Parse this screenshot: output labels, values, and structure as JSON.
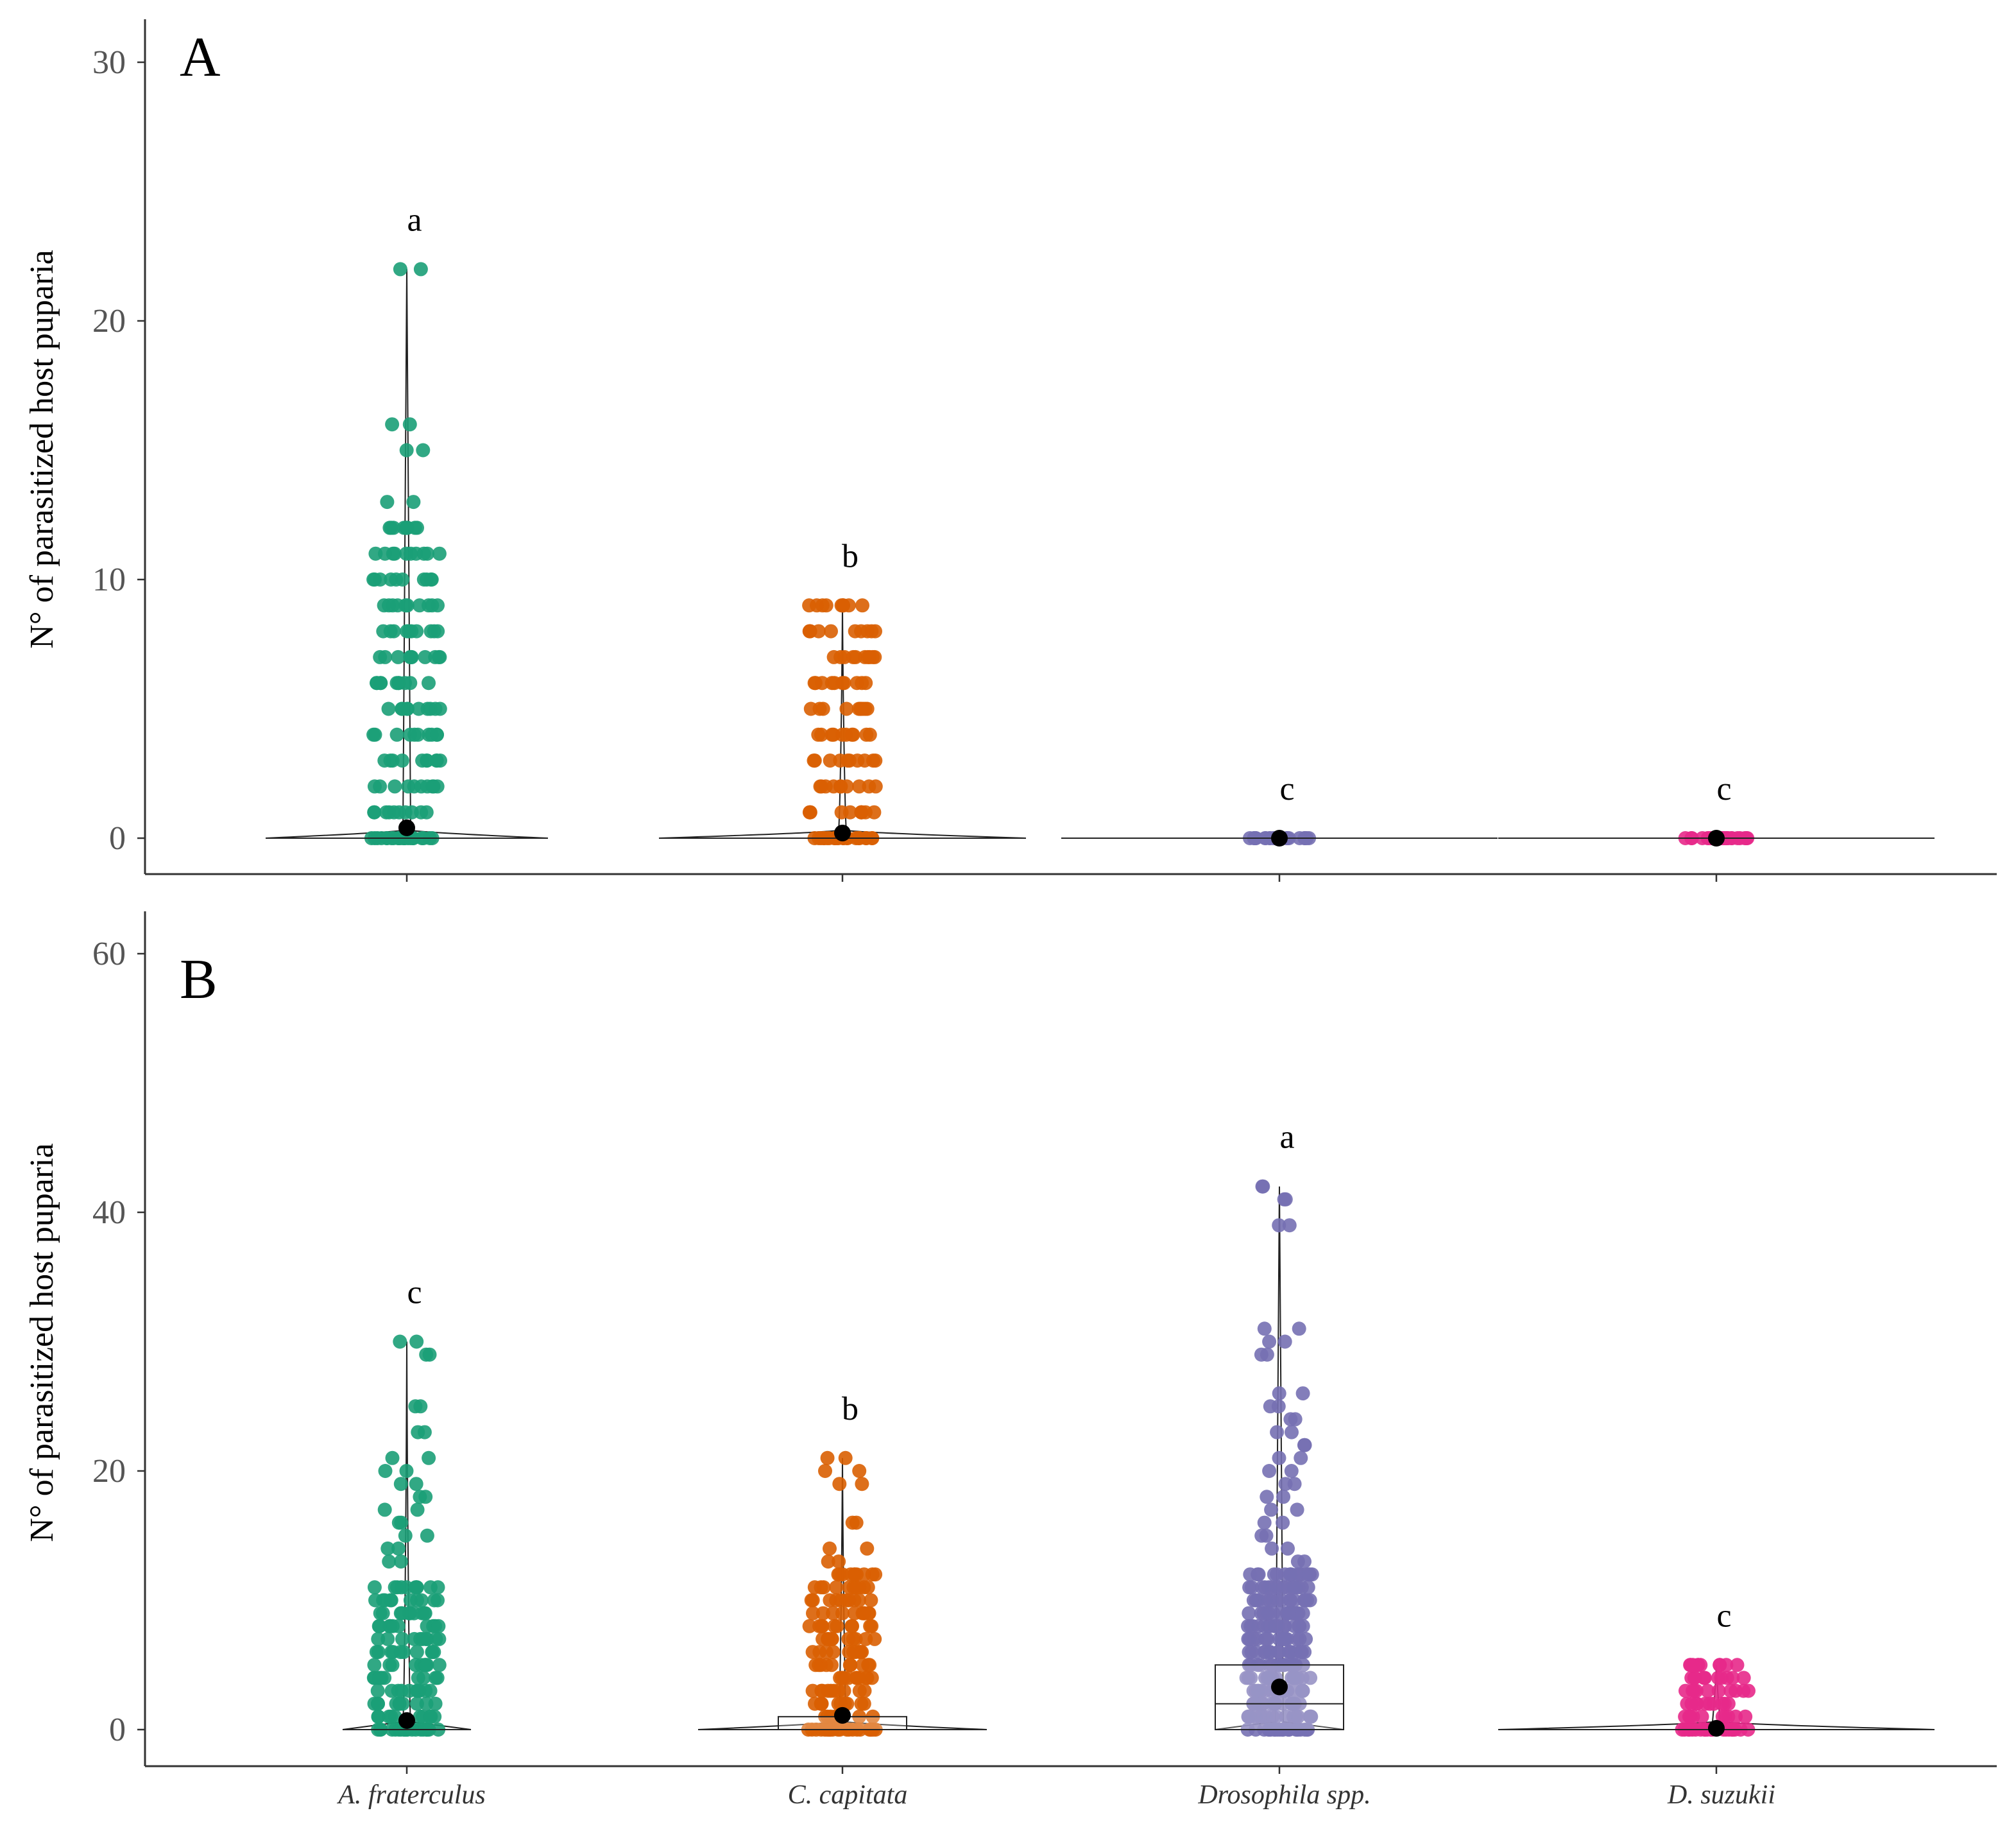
{
  "chart_data": [
    {
      "panel": "A",
      "type": "violin-jitter",
      "ylabel": "N° of parasitized host puparia",
      "ylim": [
        -1.4,
        32
      ],
      "yticks": [
        0,
        10,
        20,
        30
      ],
      "categories": [
        "A. fraterculus",
        "C. capitata",
        "Drosophila spp.",
        "D. suzukii"
      ],
      "colors": [
        "#1b9e77",
        "#d95f02",
        "#7570b3",
        "#e7298a"
      ],
      "letters": [
        "a",
        "b",
        "c",
        "c"
      ],
      "means": [
        0.4,
        0.2,
        0.0,
        0.0
      ],
      "max": [
        22,
        9,
        0,
        0
      ],
      "box": [
        {
          "q1": 0,
          "median": 0,
          "q3": 0
        },
        {
          "q1": 0,
          "median": 0,
          "q3": 0
        },
        {
          "q1": 0,
          "median": 0,
          "q3": 0
        },
        {
          "q1": 0,
          "median": 0,
          "q3": 0
        }
      ],
      "observed_values": [
        [
          0,
          1,
          2,
          3,
          4,
          5,
          6,
          7,
          8,
          9,
          10,
          11,
          12,
          13,
          15,
          16,
          22
        ],
        [
          0,
          1,
          2,
          3,
          4,
          5,
          6,
          7,
          8,
          9
        ],
        [
          0
        ],
        [
          0
        ]
      ]
    },
    {
      "panel": "B",
      "type": "violin-jitter",
      "ylabel": "N° of parasitized host puparia",
      "ylim": [
        -3,
        63
      ],
      "yticks": [
        0,
        20,
        40,
        60
      ],
      "categories": [
        "A. fraterculus",
        "C. capitata",
        "Drosophila spp.",
        "D. suzukii"
      ],
      "colors": [
        "#1b9e77",
        "#d95f02",
        "#7570b3",
        "#e7298a"
      ],
      "letters": [
        "c",
        "b",
        "a",
        "c"
      ],
      "means": [
        0.7,
        1.1,
        3.3,
        0.1
      ],
      "max": [
        30,
        21,
        42,
        5
      ],
      "box": [
        {
          "q1": 0,
          "median": 0,
          "q3": 0
        },
        {
          "q1": 0,
          "median": 0,
          "q3": 1
        },
        {
          "q1": 0,
          "median": 2,
          "q3": 5
        },
        {
          "q1": 0,
          "median": 0,
          "q3": 0
        }
      ],
      "observed_values": [
        [
          0,
          1,
          2,
          3,
          4,
          5,
          6,
          7,
          8,
          9,
          10,
          11,
          13,
          14,
          15,
          16,
          17,
          18,
          19,
          20,
          21,
          23,
          25,
          29,
          30
        ],
        [
          0,
          1,
          2,
          3,
          4,
          5,
          6,
          7,
          8,
          9,
          10,
          11,
          12,
          13,
          14,
          16,
          19,
          20,
          21
        ],
        [
          0,
          1,
          2,
          3,
          4,
          5,
          6,
          7,
          8,
          9,
          10,
          11,
          12,
          13,
          14,
          15,
          16,
          17,
          18,
          19,
          20,
          21,
          22,
          23,
          24,
          25,
          26,
          29,
          30,
          31,
          39,
          41,
          42
        ],
        [
          0,
          1,
          2,
          3,
          4,
          5
        ]
      ]
    }
  ]
}
